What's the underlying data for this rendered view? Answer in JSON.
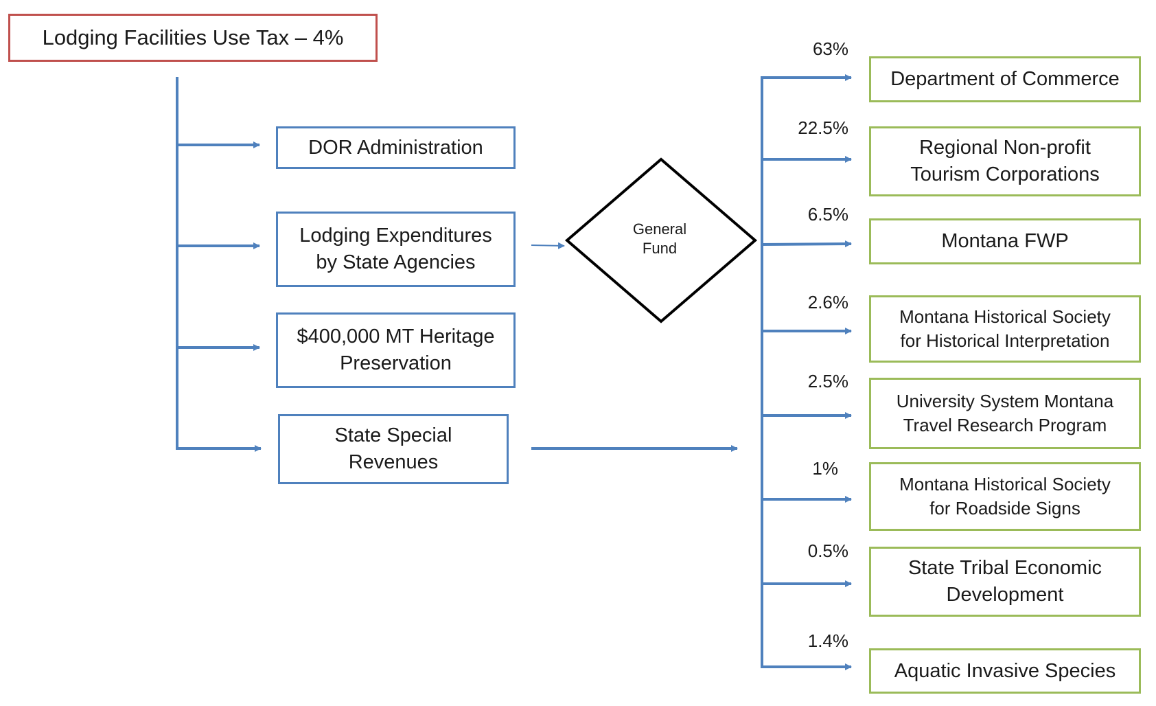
{
  "source_box": {
    "label": "Lodging Facilities Use Tax – 4%"
  },
  "left_boxes": [
    {
      "label": "DOR Administration"
    },
    {
      "label": "Lodging Expenditures\nby State Agencies"
    },
    {
      "label": "$400,000 MT Heritage\nPreservation"
    },
    {
      "label": "State Special\nRevenues"
    }
  ],
  "general_fund": {
    "label": "General\nFund"
  },
  "allocations": [
    {
      "percent": "63%",
      "label": "Department of Commerce"
    },
    {
      "percent": "22.5%",
      "label": "Regional Non-profit\nTourism Corporations"
    },
    {
      "percent": "6.5%",
      "label": "Montana FWP"
    },
    {
      "percent": "2.6%",
      "label": "Montana Historical Society\nfor Historical Interpretation"
    },
    {
      "percent": "2.5%",
      "label": "University System Montana\nTravel Research Program"
    },
    {
      "percent": "1%",
      "label": "Montana Historical Society\nfor Roadside Signs"
    },
    {
      "percent": "0.5%",
      "label": "State Tribal Economic\nDevelopment"
    },
    {
      "percent": "1.4%",
      "label": "Aquatic Invasive Species"
    }
  ],
  "colors": {
    "arrow": "#4f81bd",
    "source_border": "#c0504d",
    "left_border": "#4f81bd",
    "allocation_border": "#9bbb59",
    "diamond_border": "#000000"
  }
}
